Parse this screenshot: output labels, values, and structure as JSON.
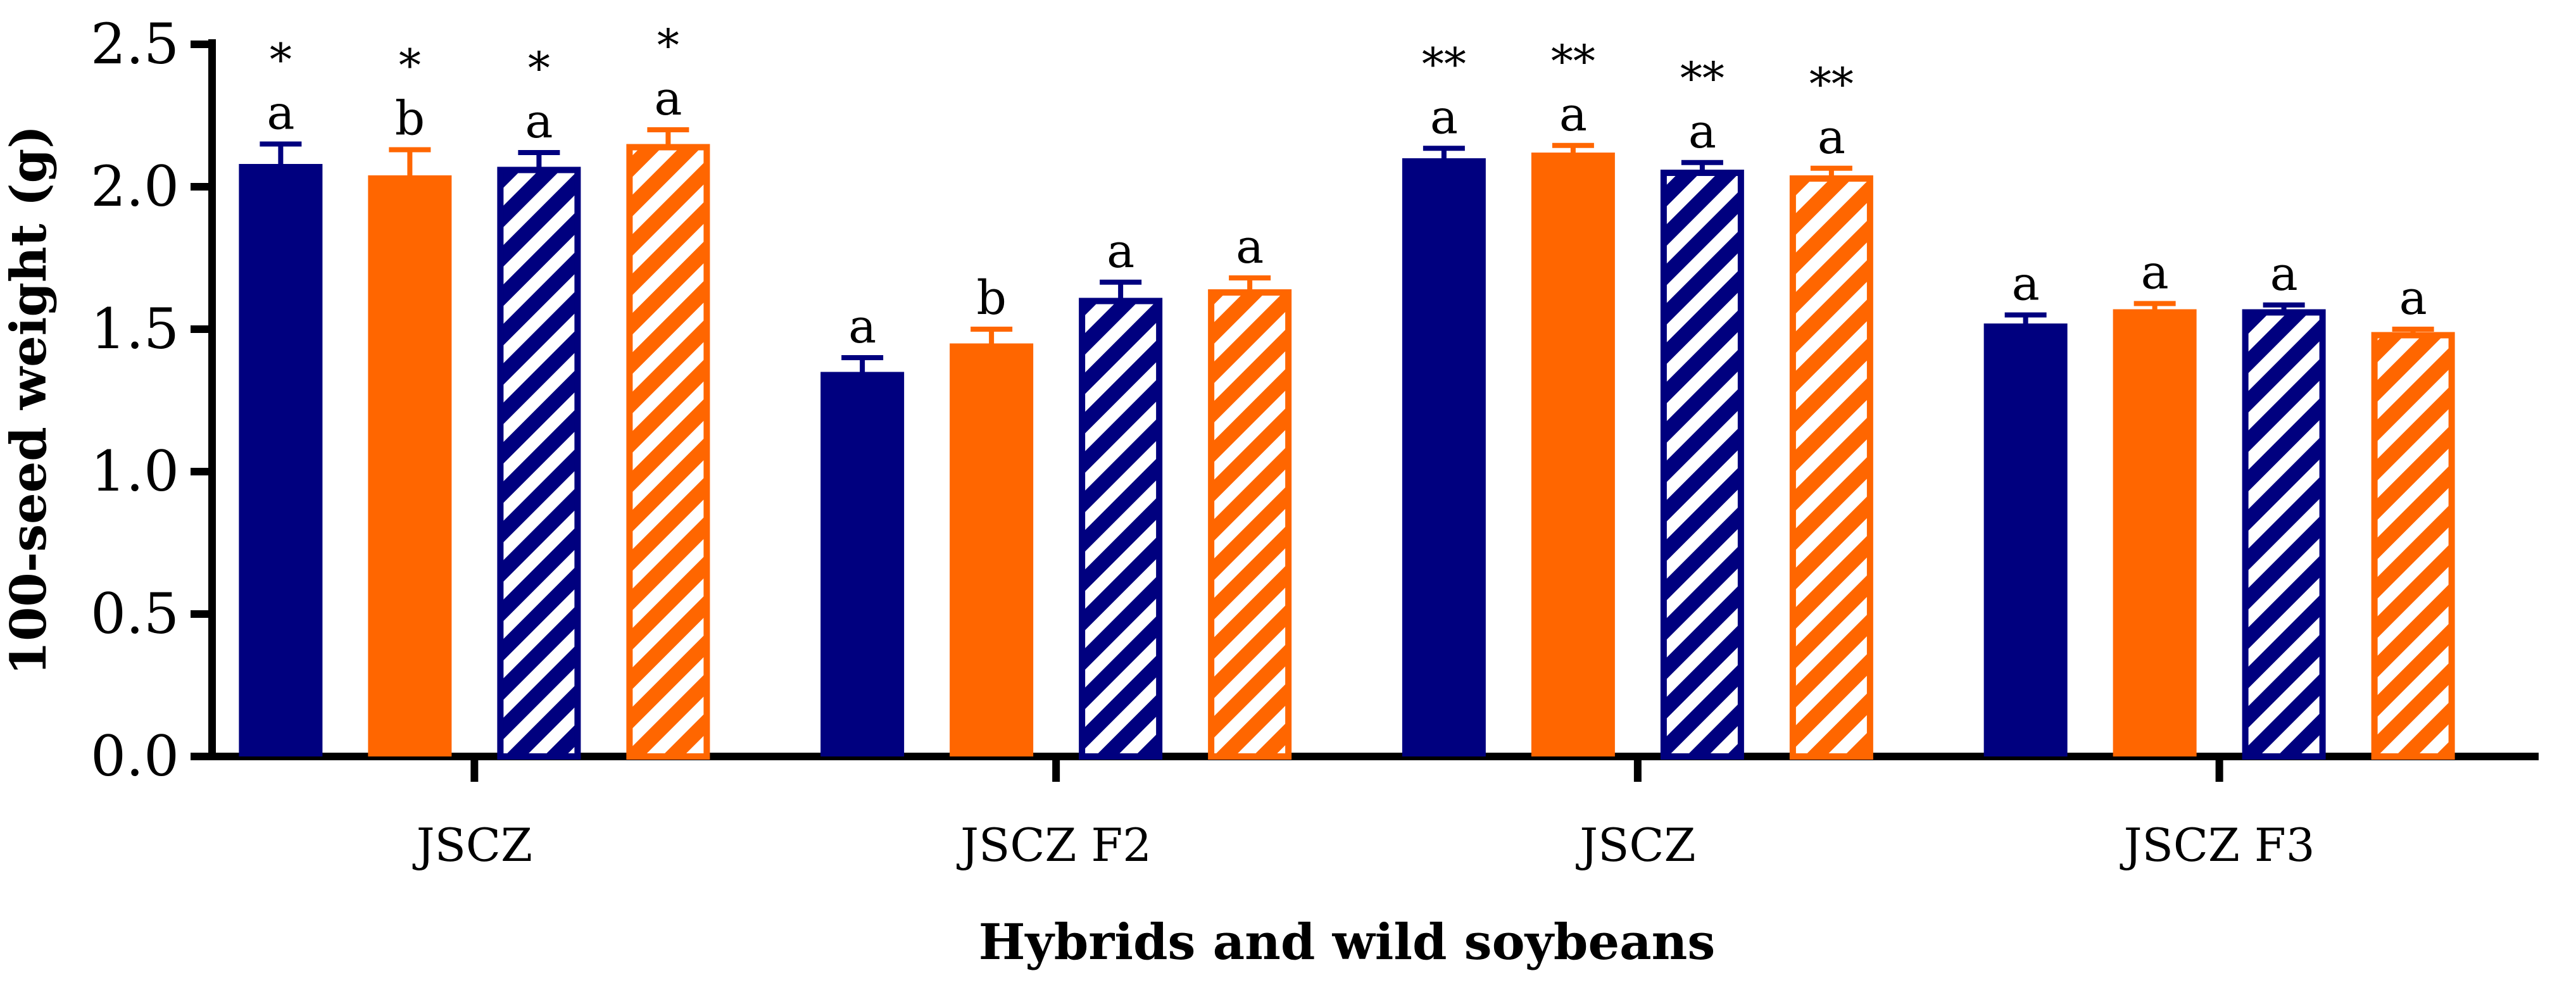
{
  "chart_data": {
    "type": "bar",
    "title": "",
    "xlabel": "Hybrids and wild soybeans",
    "ylabel": "100-seed weight (g)",
    "ylim": [
      0,
      2.5
    ],
    "yticks": [
      "0.0",
      "0.5",
      "1.0",
      "1.5",
      "2.0",
      "2.5"
    ],
    "categories": [
      "JSCZ",
      "JSCZ F2",
      "JSCZ",
      "JSCZ F3"
    ],
    "series": [
      {
        "color": "#00007f",
        "pattern": "solid",
        "values": [
          2.08,
          1.35,
          2.1,
          1.52
        ],
        "errors": [
          0.07,
          0.05,
          0.035,
          0.03
        ]
      },
      {
        "color": "#ff6600",
        "pattern": "solid",
        "values": [
          2.04,
          1.45,
          2.12,
          1.57
        ],
        "errors": [
          0.09,
          0.05,
          0.025,
          0.02
        ]
      },
      {
        "color": "#00007f",
        "pattern": "striped",
        "values": [
          2.07,
          1.61,
          2.06,
          1.57
        ],
        "errors": [
          0.05,
          0.055,
          0.025,
          0.015
        ]
      },
      {
        "color": "#ff6600",
        "pattern": "striped",
        "values": [
          2.15,
          1.64,
          2.04,
          1.49
        ],
        "errors": [
          0.05,
          0.04,
          0.025,
          0.01
        ]
      }
    ],
    "letters": [
      [
        "a",
        "b",
        "a",
        "a"
      ],
      [
        "a",
        "b",
        "a",
        "a"
      ],
      [
        "a",
        "a",
        "a",
        "a"
      ],
      [
        "a",
        "a",
        "a",
        "a"
      ]
    ],
    "significance": [
      "*",
      "",
      "**",
      ""
    ],
    "grid": false,
    "legend": "none"
  }
}
